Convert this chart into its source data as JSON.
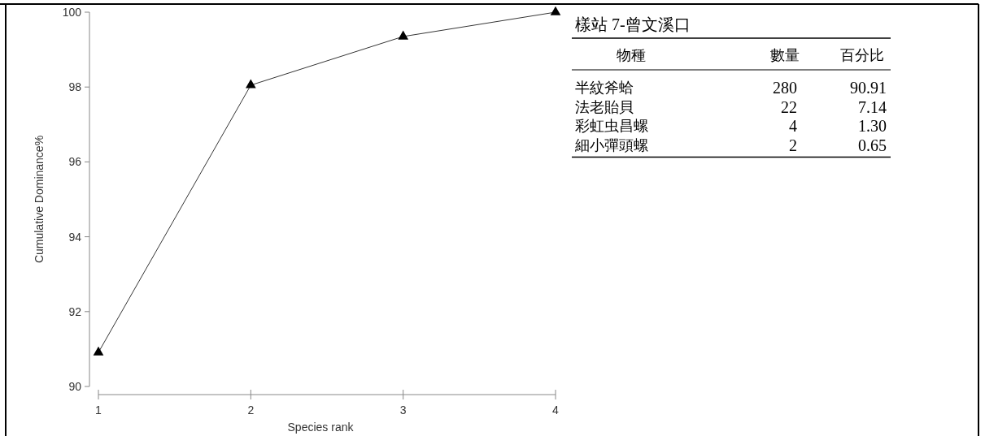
{
  "chart_data": [
    {
      "type": "line",
      "xlabel": "Species rank",
      "ylabel": "Cumulative Dominance%",
      "x": [
        1,
        2,
        3,
        4
      ],
      "xlim": [
        1,
        4
      ],
      "xticks": [
        1,
        2,
        3,
        4
      ],
      "ylim": [
        90,
        100
      ],
      "yticks": [
        90,
        92,
        94,
        96,
        98,
        100
      ],
      "series": [
        {
          "color": "#000000",
          "values": [
            90.91,
            98.05,
            99.35,
            100
          ]
        }
      ],
      "marker": "triangle",
      "line_style": "solid"
    },
    {
      "type": "other",
      "title": "樣站 7-曾文溪口",
      "xlabel": "物種",
      "categories": [
        "半紋斧蛤",
        "法老貽貝",
        "彩虹虫昌螺",
        "細小彈頭螺"
      ],
      "series": [
        {
          "name": "數量",
          "values": [
            280,
            22,
            4,
            2
          ],
          "value_labels": [
            "280",
            "22",
            "4",
            "2"
          ]
        },
        {
          "name": "百分比",
          "values": [
            90.91,
            7.14,
            1.3,
            0.65
          ],
          "value_labels": [
            "90.91",
            "7.14",
            "1.30",
            "0.65"
          ]
        }
      ],
      "data_labels": true
    }
  ]
}
